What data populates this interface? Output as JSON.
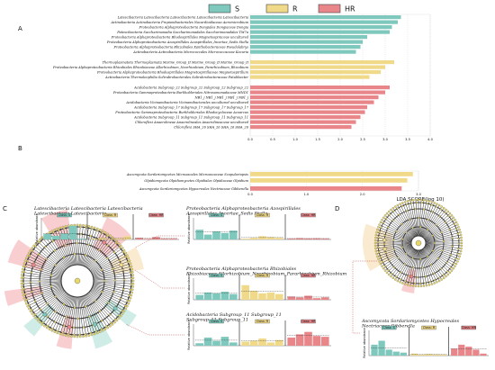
{
  "legend": [
    {
      "name": "S",
      "color": "#7fc8be"
    },
    {
      "name": "R",
      "color": "#f1d98a"
    },
    {
      "name": "HR",
      "color": "#e8868a"
    }
  ],
  "panel_labels": {
    "a": "A",
    "b": "B",
    "c": "C",
    "d": "D"
  },
  "chart_data": [
    {
      "type": "bar",
      "orientation": "horizontal",
      "panel": "A",
      "xlabel": "",
      "xlim": [
        0,
        4.0
      ],
      "xticks": [
        "0.0",
        "0.5",
        "1.0",
        "1.5",
        "2.0",
        "2.5",
        "3.0",
        "3.5",
        "4.0"
      ],
      "bars": [
        {
          "label": "Latescibacteria Latescibacteria Latescibacteria Latescibacteria Latescibacteria",
          "value": 3.35,
          "group": "S"
        },
        {
          "label": "Actinobacteria Actinobacteria Propionibacteriales Nocardioidaceae Aeromicrobium",
          "value": 3.28,
          "group": "S"
        },
        {
          "label": "Proteobacteria Alphaproteobacteria Dongiales Dongiaceae Dongia",
          "value": 3.15,
          "group": "S"
        },
        {
          "label": "Patescibacteria Saccharimonadia Saccharimonadales Saccharimonadales TM7a",
          "value": 3.1,
          "group": "S"
        },
        {
          "label": "Proteobacteria Alphaproteobacteria Rhodospirillales Magnetospiraceae uncultured",
          "value": 2.6,
          "group": "S"
        },
        {
          "label": "Proteobacteria Alphaproteobacteria Azospirillales Azospirillales_Incertae_Sedis Stella",
          "value": 2.5,
          "group": "S"
        },
        {
          "label": "Proteobacteria Alphaproteobacteria Rhizobiales Xanthobacteraceae Pseudolabrys",
          "value": 2.45,
          "group": "S"
        },
        {
          "label": "Actinobacteria Actinobacteria Micrococcales Micrococcaceae Kocuria",
          "value": 2.35,
          "group": "S"
        },
        {
          "label": "Thermoplasmatota Thermoplasmata Marine_Group_II Marine_Group_II Marine_Group_II",
          "value": 3.2,
          "group": "R"
        },
        {
          "label": "Proteobacteria Alphaproteobacteria Rhizobiales Rhizobiaceae Allorhizobium_Neorhizobium_Pararhizobium_Rhizobium",
          "value": 3.0,
          "group": "R"
        },
        {
          "label": "Proteobacteria Alphaproteobacteria Rhodospirillales Magnetospirillaceae Magnetospirillum",
          "value": 2.9,
          "group": "R"
        },
        {
          "label": "Actinobacteria Thermoleophilia Solirubrobacterales Solirubrobacteraceae Patulibacter",
          "value": 2.65,
          "group": "R"
        },
        {
          "label": "Acidobacteria Subgroup_22 Subgroup_22 Subgroup_22 Subgroup_22",
          "value": 3.1,
          "group": "HR"
        },
        {
          "label": "Proteobacteria Gammaproteobacteria Burkholderiales Nitrosomonadaceae MND1",
          "value": 3.0,
          "group": "HR"
        },
        {
          "label": "NB1_j NB1_j NB1_j NB1_j NB1_j",
          "value": 2.85,
          "group": "HR"
        },
        {
          "label": "Acidobacteria Vicinamibacteria Vicinamibacterales uncultured uncultured",
          "value": 2.75,
          "group": "HR"
        },
        {
          "label": "Acidobacteria Subgroup_17 Subgroup_17 Subgroup_17 Subgroup_17",
          "value": 2.6,
          "group": "HR"
        },
        {
          "label": "Proteobacteria Gammaproteobacteria Burkholderiales Rhodocyclaceae Azoarcus",
          "value": 2.55,
          "group": "HR"
        },
        {
          "label": "Acidobacteria Subgroup_11 Subgroup_11 Subgroup_11 Subgroup_11",
          "value": 2.45,
          "group": "HR"
        },
        {
          "label": "Chloroflexi Anaerolineae Anaerolineales Anaerolineaceae uncultured",
          "value": 2.35,
          "group": "HR"
        },
        {
          "label": "Chloroflexi SHA_26 SHA_26 SHA_26 SHA_26",
          "value": 2.25,
          "group": "HR"
        }
      ]
    },
    {
      "type": "bar",
      "orientation": "horizontal",
      "panel": "B",
      "xlabel": "LDA SCORE(log 10)",
      "xlim": [
        0,
        3.0
      ],
      "xticks": [
        "0.0",
        "1.0",
        "2.0",
        "3.0"
      ],
      "bars": [
        {
          "label": "Ascomycota Sordariomycetes Microascales Microascaceae Scopulariopsis",
          "value": 2.9,
          "group": "R"
        },
        {
          "label": "Olpidiomycota Olpidiomycetes Olpidiales Olpidiaceae Olpidium",
          "value": 2.8,
          "group": "R"
        },
        {
          "label": "Ascomycota Sordariomycetes Hypocreales Nectriaceae Gibberella",
          "value": 2.7,
          "group": "HR"
        }
      ]
    }
  ],
  "insets": [
    {
      "title": "Latescibacteria Latescibacteria Latescibacteria Latescibacteria Latescibacteria",
      "ylabel": "Relative abundance",
      "groups": [
        "Class: S",
        "Class: R",
        "Class: HR"
      ],
      "values": [
        0.34,
        0.22,
        0.36,
        0.85,
        0.05,
        0.04,
        0.1,
        0.03,
        0.06,
        0.2,
        0.1,
        0.04,
        0.15,
        0.05,
        0.05
      ]
    },
    {
      "title": "Proteobacteria Alphaproteobacteria Azospirillales Azospirillales_Incertae_Sedis Stella",
      "ylabel": "Relative abundance",
      "groups": [
        "Class: S",
        "Class: R",
        "Class: HR"
      ],
      "values": [
        0.6,
        0.3,
        0.5,
        0.4,
        0.55,
        0.05,
        0.1,
        0.2,
        0.15,
        0.1,
        0.05,
        0.08,
        0.06,
        0.07,
        0.05
      ]
    },
    {
      "title": "Proteobacteria Alphaproteobacteria Rhizobiales Rhizobiaceae Allorhizobium_Neorhizobium_Pararhizobium_Rhizobium",
      "ylabel": "Relative abundance",
      "groups": [
        "Class: S",
        "Class: R",
        "Class: HR"
      ],
      "values": [
        0.3,
        0.45,
        0.4,
        0.5,
        0.35,
        0.9,
        0.55,
        0.4,
        0.45,
        0.35,
        0.2,
        0.15,
        0.25,
        0.1,
        0.15
      ]
    },
    {
      "title": "Acidobacteria Subgroup_11 Subgroup_11 Subgroup_11 Subgroup_11",
      "ylabel": "Relative abundance",
      "groups": [
        "Class: S",
        "Class: R",
        "Class: HR"
      ],
      "values": [
        0.15,
        0.5,
        0.3,
        0.55,
        0.2,
        0.25,
        0.3,
        0.45,
        0.2,
        0.35,
        0.5,
        0.7,
        0.85,
        0.6,
        0.55
      ]
    },
    {
      "title": "Ascomycota Sordariomycetes Hypocreales Nectriaceae Gibberella",
      "ylabel": "Relative abundance",
      "groups": [
        "Class: S",
        "Class: R",
        "Class: HR"
      ],
      "values": [
        0.55,
        0.75,
        0.3,
        0.2,
        0.15,
        0.1,
        0.05,
        0.08,
        0.06,
        0.05,
        0.35,
        0.55,
        0.45,
        0.3,
        0.1
      ]
    }
  ]
}
